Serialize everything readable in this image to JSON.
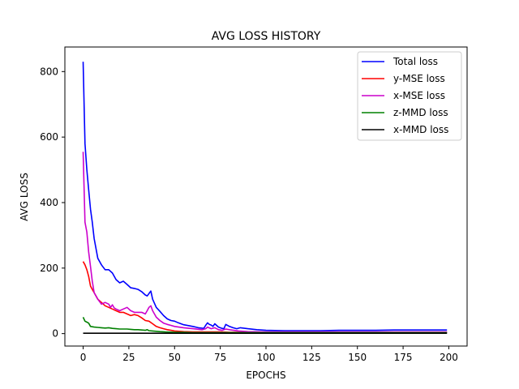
{
  "chart_data": {
    "type": "line",
    "title": "AVG LOSS HISTORY",
    "xlabel": "EPOCHS",
    "ylabel": "AVG LOSS",
    "xlim": [
      -10,
      210
    ],
    "ylim": [
      -38,
      875
    ],
    "xticks": [
      0,
      25,
      50,
      75,
      100,
      125,
      150,
      175,
      200
    ],
    "yticks": [
      0,
      200,
      400,
      600,
      800
    ],
    "grid": false,
    "legend_position": "top-right",
    "series": [
      {
        "name": "Total loss",
        "color": "#0000ff",
        "x": [
          0,
          1,
          2,
          3,
          4,
          5,
          6,
          8,
          10,
          12,
          14,
          16,
          18,
          20,
          22,
          24,
          26,
          28,
          30,
          32,
          34,
          35,
          37,
          38,
          40,
          42,
          44,
          46,
          48,
          50,
          52,
          55,
          60,
          63,
          66,
          67,
          68,
          69,
          70,
          71,
          72,
          74,
          76,
          77,
          78,
          80,
          82,
          84,
          86,
          90,
          95,
          100,
          110,
          120,
          130,
          140,
          150,
          160,
          170,
          175,
          180,
          190,
          199
        ],
        "y": [
          830,
          580,
          500,
          440,
          380,
          340,
          290,
          230,
          210,
          195,
          195,
          185,
          165,
          155,
          160,
          150,
          140,
          138,
          135,
          128,
          118,
          115,
          130,
          105,
          80,
          68,
          55,
          45,
          40,
          38,
          33,
          27,
          22,
          18,
          16,
          25,
          33,
          28,
          26,
          22,
          30,
          20,
          16,
          15,
          28,
          22,
          18,
          15,
          18,
          15,
          12,
          10,
          9,
          9,
          9,
          10,
          10,
          10,
          11,
          11,
          11,
          11,
          11
        ]
      },
      {
        "name": "y-MSE loss",
        "color": "#ff0000",
        "x": [
          0,
          1,
          2,
          3,
          4,
          5,
          6,
          8,
          10,
          12,
          14,
          16,
          18,
          20,
          22,
          24,
          26,
          28,
          30,
          32,
          34,
          36,
          38,
          40,
          42,
          44,
          46,
          48,
          50,
          55,
          60,
          65,
          70,
          75,
          80,
          90,
          100,
          120,
          150,
          175,
          199
        ],
        "y": [
          220,
          210,
          195,
          175,
          145,
          135,
          125,
          105,
          95,
          85,
          80,
          75,
          70,
          65,
          65,
          60,
          55,
          58,
          55,
          48,
          40,
          38,
          30,
          22,
          18,
          15,
          12,
          10,
          8,
          6,
          5,
          5,
          5,
          5,
          4,
          4,
          3,
          3,
          3,
          3,
          3
        ]
      },
      {
        "name": "x-MSE loss",
        "color": "#cc00cc",
        "x": [
          0,
          1,
          2,
          3,
          4,
          5,
          6,
          8,
          10,
          12,
          14,
          15,
          16,
          17,
          18,
          20,
          22,
          24,
          26,
          28,
          30,
          32,
          34,
          35,
          36,
          37,
          38,
          40,
          42,
          44,
          46,
          48,
          50,
          55,
          60,
          65,
          67,
          68,
          70,
          72,
          74,
          76,
          78,
          80,
          85,
          90,
          100,
          120,
          150,
          175,
          199
        ],
        "y": [
          555,
          340,
          310,
          250,
          205,
          160,
          125,
          105,
          90,
          95,
          90,
          80,
          88,
          78,
          75,
          70,
          75,
          80,
          70,
          65,
          65,
          65,
          60,
          70,
          80,
          85,
          70,
          50,
          40,
          32,
          28,
          25,
          22,
          18,
          15,
          12,
          15,
          20,
          15,
          18,
          12,
          10,
          14,
          12,
          8,
          6,
          5,
          5,
          5,
          5,
          5
        ]
      },
      {
        "name": "z-MMD loss",
        "color": "#008000",
        "x": [
          0,
          1,
          2,
          3,
          4,
          6,
          8,
          10,
          12,
          14,
          16,
          18,
          20,
          22,
          24,
          26,
          28,
          30,
          32,
          34,
          35,
          36,
          38,
          40,
          42,
          45,
          50,
          55,
          60,
          70,
          80,
          100,
          150,
          199
        ],
        "y": [
          50,
          38,
          35,
          32,
          22,
          20,
          19,
          18,
          17,
          18,
          16,
          15,
          14,
          14,
          14,
          13,
          12,
          12,
          11,
          10,
          12,
          9,
          8,
          7,
          6,
          5,
          4,
          4,
          3,
          3,
          3,
          3,
          3,
          3
        ]
      },
      {
        "name": "x-MMD loss",
        "color": "#000000",
        "x": [
          0,
          10,
          20,
          30,
          40,
          50,
          60,
          80,
          100,
          150,
          199
        ],
        "y": [
          1,
          1,
          1,
          1,
          1,
          1,
          1,
          1,
          1,
          1,
          1
        ]
      }
    ]
  }
}
